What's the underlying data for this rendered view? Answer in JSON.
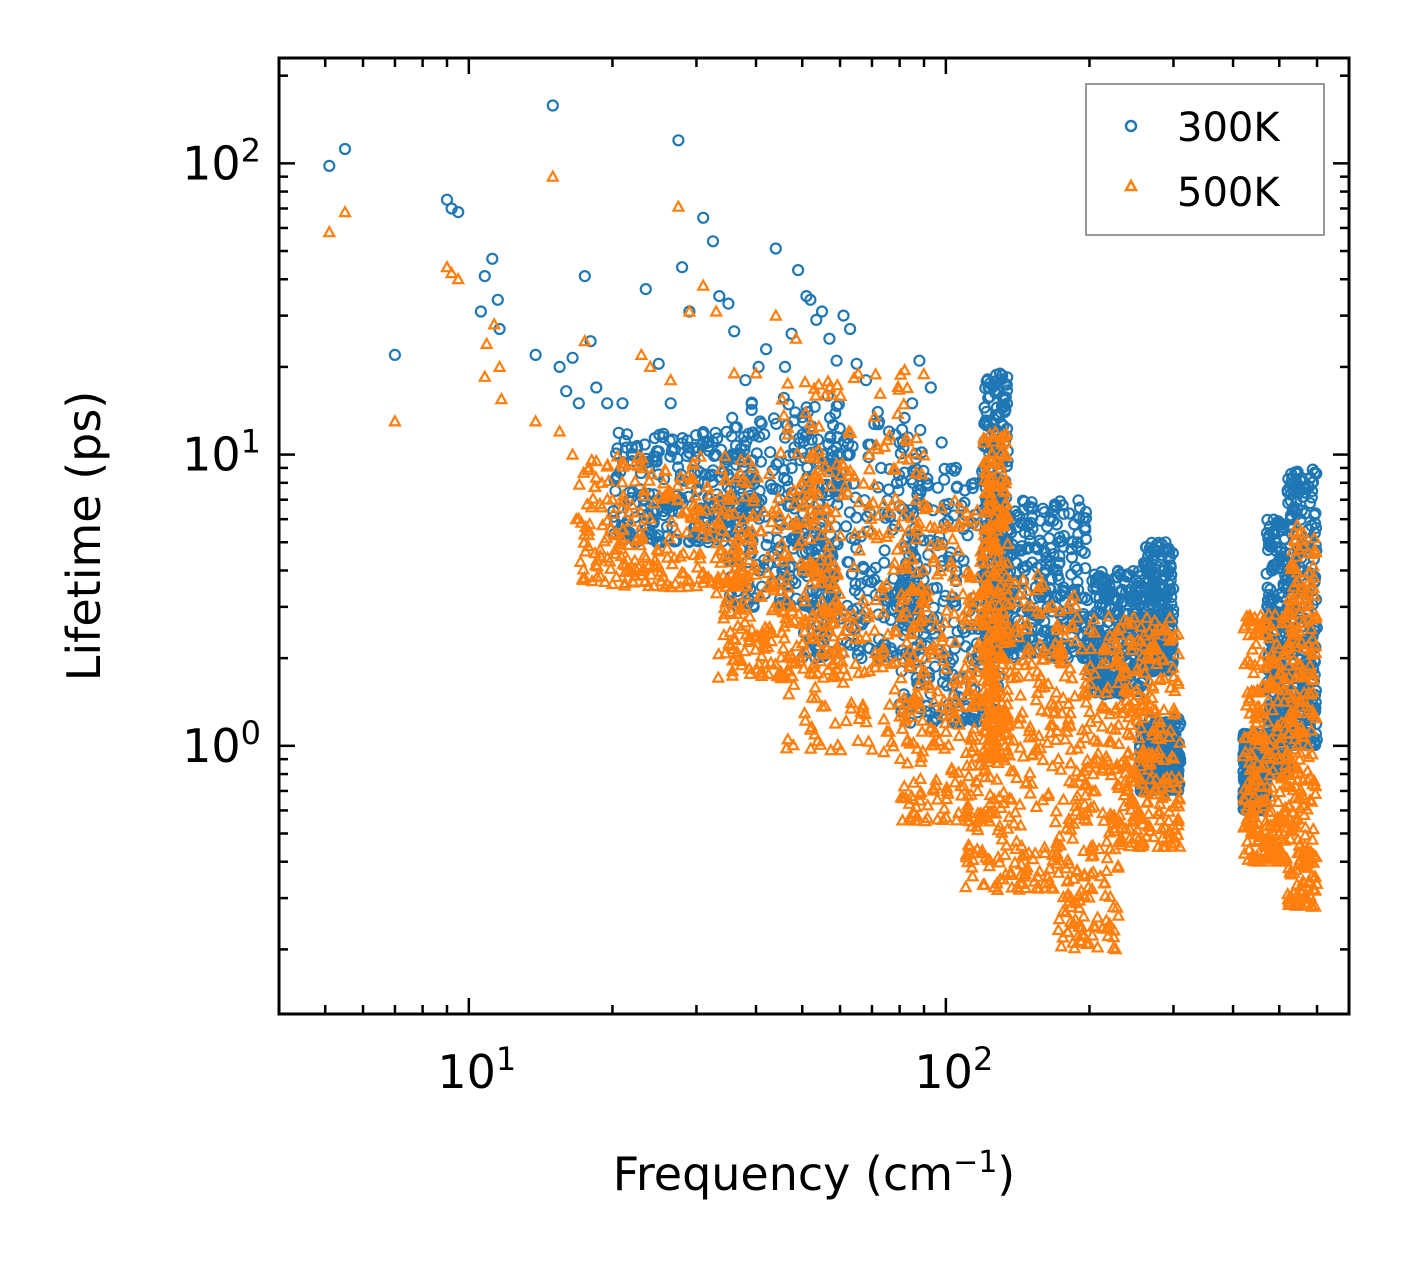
{
  "chart_data": {
    "type": "scatter",
    "xscale": "log",
    "yscale": "log",
    "xlabel": "Frequency (cm",
    "xlabel_superscript": "−1",
    "xlabel_suffix": ")",
    "ylabel": "Lifetime (ps)",
    "xlim": [
      4,
      700
    ],
    "ylim": [
      0.12,
      230
    ],
    "x_ticks": [
      {
        "value": 10,
        "base": "10",
        "exp": "1"
      },
      {
        "value": 100,
        "base": "10",
        "exp": "2"
      }
    ],
    "y_ticks": [
      {
        "value": 1,
        "base": "10",
        "exp": "0"
      },
      {
        "value": 10,
        "base": "10",
        "exp": "1"
      },
      {
        "value": 100,
        "base": "10",
        "exp": "2"
      }
    ],
    "legend_position": "top-right",
    "series": [
      {
        "name": "300K",
        "color": "#1f77b4",
        "marker": "circle-open",
        "scattered_points": [
          [
            5.1,
            98
          ],
          [
            5.5,
            112
          ],
          [
            7.0,
            22
          ],
          [
            9.0,
            75
          ],
          [
            9.2,
            70
          ],
          [
            9.5,
            68
          ],
          [
            10.8,
            41
          ],
          [
            11.2,
            47
          ],
          [
            11.5,
            34
          ],
          [
            11.6,
            27
          ],
          [
            10.6,
            31
          ],
          [
            13.8,
            22
          ],
          [
            15.0,
            158
          ],
          [
            15.5,
            20
          ],
          [
            16.0,
            16.5
          ],
          [
            16.5,
            21.5
          ],
          [
            17.5,
            41
          ],
          [
            17.0,
            15
          ],
          [
            18.0,
            24.5
          ],
          [
            18.5,
            17
          ],
          [
            19.5,
            15
          ],
          [
            20.5,
            10.5
          ],
          [
            21.0,
            15
          ],
          [
            22.0,
            9.5
          ],
          [
            23.5,
            37
          ],
          [
            25.0,
            20.5
          ],
          [
            26.5,
            15
          ],
          [
            27.5,
            120
          ],
          [
            28.0,
            44
          ],
          [
            29.0,
            31
          ],
          [
            31.0,
            65
          ],
          [
            32.5,
            54
          ],
          [
            33.5,
            35
          ],
          [
            35.0,
            33
          ],
          [
            36.0,
            26.5
          ],
          [
            38.0,
            18
          ],
          [
            40.5,
            20
          ],
          [
            42.0,
            23
          ],
          [
            44.0,
            51
          ],
          [
            46.0,
            20
          ],
          [
            47.5,
            26
          ],
          [
            49.0,
            43
          ],
          [
            51.0,
            35
          ],
          [
            52.0,
            34
          ],
          [
            53.5,
            29
          ],
          [
            55.0,
            31
          ],
          [
            57.0,
            25
          ],
          [
            59.0,
            21
          ],
          [
            61.0,
            30
          ],
          [
            63.0,
            27
          ],
          [
            65.0,
            20.5
          ],
          [
            68.0,
            18
          ],
          [
            72.0,
            14
          ],
          [
            76.0,
            12
          ],
          [
            80.0,
            11
          ],
          [
            85.0,
            15
          ],
          [
            88.0,
            21
          ],
          [
            93.0,
            17
          ],
          [
            98.0,
            11
          ],
          [
            105.0,
            9
          ]
        ],
        "bands": [
          {
            "x": [
              20,
              40
            ],
            "y": [
              5,
              12
            ]
          },
          {
            "x": [
              35,
              60
            ],
            "y": [
              3,
              16
            ]
          },
          {
            "x": [
              50,
              90
            ],
            "y": [
              2,
              14
            ]
          },
          {
            "x": [
              80,
              130
            ],
            "y": [
              1.2,
              9
            ]
          },
          {
            "x": [
              120,
              135
            ],
            "y": [
              2,
              19
            ]
          },
          {
            "x": [
              135,
              200
            ],
            "y": [
              2,
              7
            ]
          },
          {
            "x": [
              200,
              260
            ],
            "y": [
              1.5,
              4
            ]
          },
          {
            "x": [
              260,
              300
            ],
            "y": [
              1.8,
              5
            ]
          },
          {
            "x": [
              255,
              310
            ],
            "y": [
              0.7,
              1.25
            ]
          },
          {
            "x": [
              420,
              470
            ],
            "y": [
              0.6,
              1.1
            ]
          },
          {
            "x": [
              470,
              520
            ],
            "y": [
              0.8,
              6
            ]
          },
          {
            "x": [
              520,
              600
            ],
            "y": [
              1,
              9
            ]
          }
        ]
      },
      {
        "name": "500K",
        "color": "#ff7f0e",
        "marker": "triangle-open",
        "scattered_points": [
          [
            5.1,
            58
          ],
          [
            5.5,
            68
          ],
          [
            7.0,
            13
          ],
          [
            9.0,
            44
          ],
          [
            9.2,
            42
          ],
          [
            9.5,
            40
          ],
          [
            10.8,
            18.5
          ],
          [
            10.9,
            24
          ],
          [
            11.3,
            28
          ],
          [
            11.6,
            20
          ],
          [
            11.7,
            15.5
          ],
          [
            13.8,
            13
          ],
          [
            15.0,
            90
          ],
          [
            15.5,
            12
          ],
          [
            16.5,
            10
          ],
          [
            16.8,
            6
          ],
          [
            17.5,
            24.5
          ],
          [
            18.5,
            9.5
          ],
          [
            19.0,
            8
          ],
          [
            20.0,
            7
          ],
          [
            21.0,
            5.5
          ],
          [
            23.0,
            22
          ],
          [
            24.0,
            20
          ],
          [
            26.5,
            18
          ],
          [
            27.5,
            71
          ],
          [
            29.0,
            31
          ],
          [
            31.0,
            38
          ],
          [
            33.0,
            31
          ],
          [
            36.0,
            19
          ],
          [
            40.0,
            19
          ],
          [
            44.0,
            30
          ],
          [
            48.5,
            25
          ]
        ],
        "bands": [
          {
            "x": [
              17,
              40
            ],
            "y": [
              3.5,
              10
            ]
          },
          {
            "x": [
              33,
              60
            ],
            "y": [
              1.7,
              9
            ]
          },
          {
            "x": [
              45,
              90
            ],
            "y": [
              0.95,
              20
            ]
          },
          {
            "x": [
              80,
              125
            ],
            "y": [
              0.55,
              7
            ]
          },
          {
            "x": [
              120,
              135
            ],
            "y": [
              0.9,
              12
            ]
          },
          {
            "x": [
              110,
              170
            ],
            "y": [
              0.32,
              4
            ]
          },
          {
            "x": [
              170,
              230
            ],
            "y": [
              0.2,
              3.5
            ]
          },
          {
            "x": [
              230,
              310
            ],
            "y": [
              0.45,
              2.8
            ]
          },
          {
            "x": [
              420,
              520
            ],
            "y": [
              0.4,
              3
            ]
          },
          {
            "x": [
              520,
              600
            ],
            "y": [
              0.28,
              6
            ]
          }
        ]
      }
    ]
  }
}
